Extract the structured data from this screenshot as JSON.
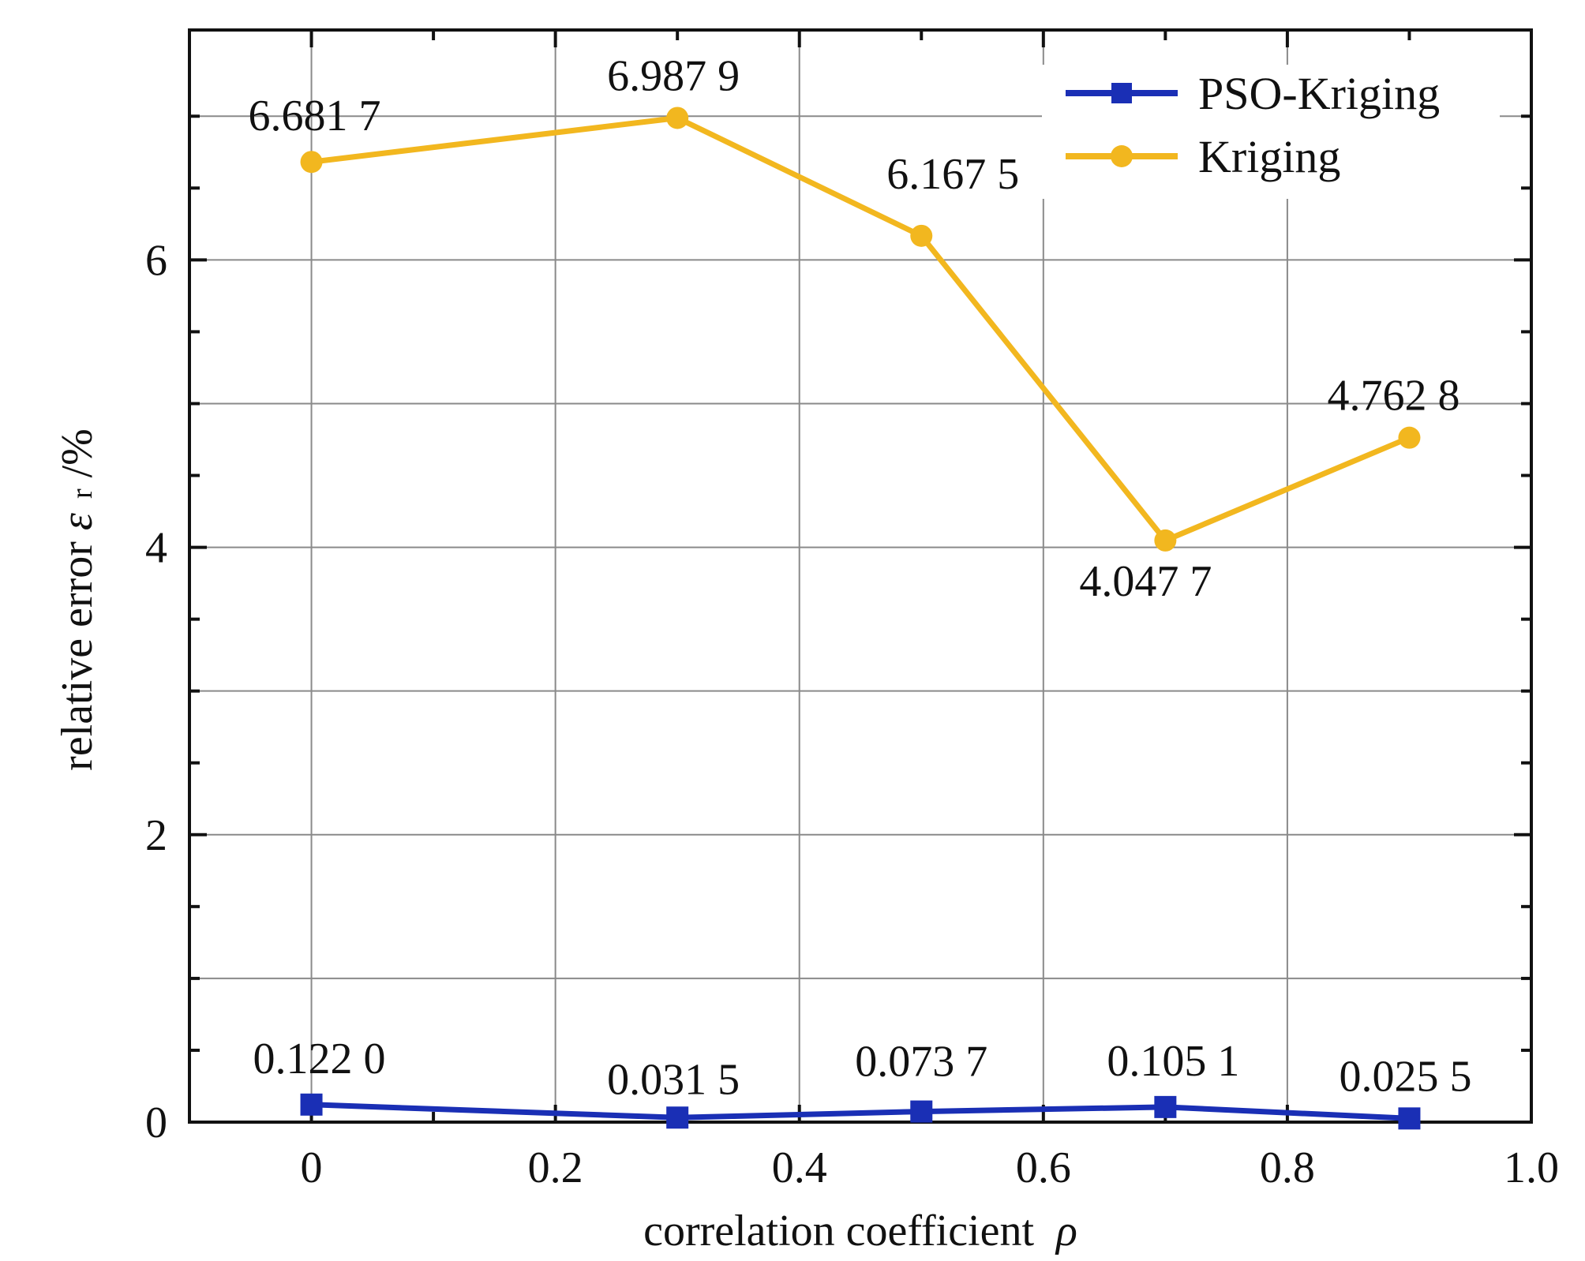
{
  "chart_data": {
    "type": "line",
    "xlabel": "correlation coefficient",
    "xlabel_symbol": "ρ",
    "ylabel_prefix": "relative error ",
    "ylabel_symbol": "ε",
    "ylabel_subscript": "r",
    "ylabel_suffix": " /%",
    "xlim": [
      -0.1,
      1.0
    ],
    "ylim": [
      0,
      7.6
    ],
    "x_ticks": [
      0,
      0.2,
      0.4,
      0.6,
      0.8,
      1.0
    ],
    "x_tick_labels": [
      "0",
      "0.2",
      "0.4",
      "0.6",
      "0.8",
      "1.0"
    ],
    "x_minor_ticks": [
      -0.1,
      0.1,
      0.3,
      0.5,
      0.7,
      0.9
    ],
    "y_ticks": [
      0,
      2,
      4,
      6
    ],
    "y_tick_labels": [
      "0",
      "2",
      "4",
      "6"
    ],
    "y_minor_ticks": [
      0.5,
      1,
      1.5,
      2.5,
      3,
      3.5,
      4.5,
      5,
      5.5,
      6.5,
      7
    ],
    "x_grid": [
      0,
      0.2,
      0.4,
      0.6,
      0.8
    ],
    "y_grid": [
      1,
      2,
      3,
      4,
      5,
      6,
      7
    ],
    "grid": true,
    "legend_position": "top-right",
    "series": [
      {
        "name": "PSO-Kriging",
        "color": "#1a2fb5",
        "marker": "square",
        "x": [
          0,
          0.3,
          0.5,
          0.7,
          0.9
        ],
        "y": [
          0.122,
          0.0315,
          0.0737,
          0.1051,
          0.0255
        ],
        "labels": [
          "0.122 0",
          "0.031 5",
          "0.073 7",
          "0.105 1",
          "0.025 5"
        ]
      },
      {
        "name": "Kriging",
        "color": "#f2b71f",
        "marker": "circle",
        "x": [
          0,
          0.3,
          0.5,
          0.7,
          0.9
        ],
        "y": [
          6.6817,
          6.9879,
          6.1675,
          4.0477,
          4.7628
        ],
        "labels": [
          "6.681 7",
          "6.987 9",
          "6.167 5",
          "4.047 7",
          "4.762 8"
        ]
      }
    ]
  }
}
